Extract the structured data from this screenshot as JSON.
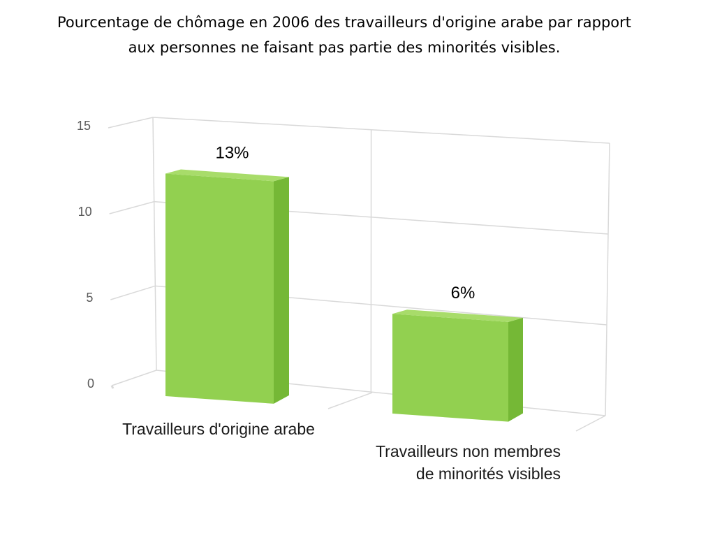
{
  "chart_data": {
    "type": "bar",
    "title_lines": [
      "Pourcentage de chômage en 2006 des travailleurs d'origine arabe par rapport",
      "aux personnes ne faisant pas partie des minorités visibles."
    ],
    "categories": [
      [
        "Travailleurs d'origine arabe"
      ],
      [
        "Travailleurs non membres",
        "de minorités visibles"
      ]
    ],
    "values": [
      13,
      6
    ],
    "data_labels": [
      "13%",
      "6%"
    ],
    "yticks": [
      "0",
      "5",
      "10",
      "15"
    ],
    "ylim": [
      0,
      15
    ],
    "bar_color": "#92d050",
    "grid": true
  }
}
